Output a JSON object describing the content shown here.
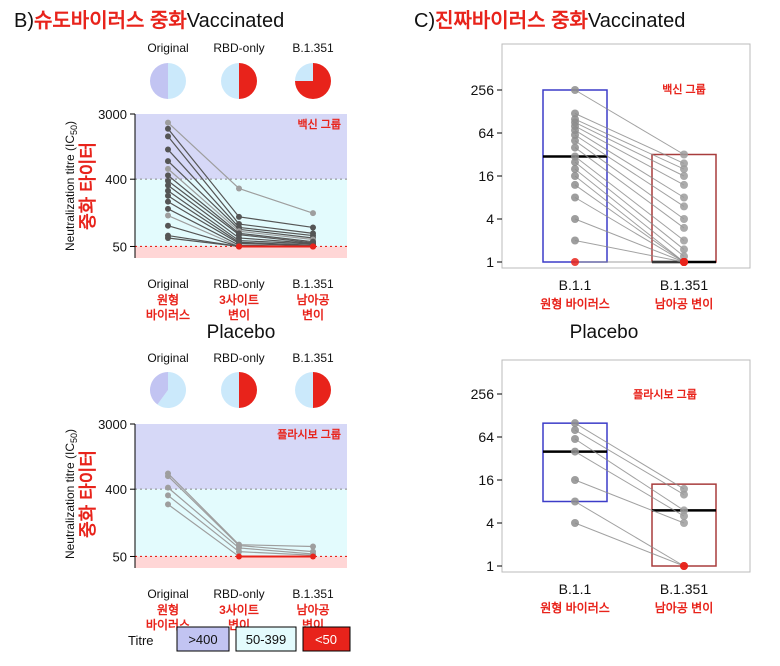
{
  "colors": {
    "band_high": "#d6d8f7",
    "band_mid": "#e3fbfd",
    "band_low": "#ffd6d6",
    "red": "#e8231b",
    "pie_light_blue": "#cbe9fb",
    "pie_lavender": "#c2c4f2",
    "line_dark": "#555555",
    "line_light": "#9e9e9e",
    "box_blue": "#3c3cc8",
    "box_red": "#a83c3c"
  },
  "panel_b": {
    "label": "B)",
    "title_korean": "슈도바이러스 중화",
    "title_english": "Vaccinated",
    "y_label": "Neutralization titre (IC",
    "y_label_sub": "50",
    "y_label_close": ")",
    "y_label_korean": "중화 타이터",
    "legend": {
      "label": "Titre",
      "items": [
        {
          "text": ">400",
          "color": "#c2c4f2"
        },
        {
          "text": "50-399",
          "color": "#e3fbfd"
        },
        {
          "text": "<50",
          "color": "#e8231b"
        }
      ]
    }
  },
  "panel_c": {
    "label": "C)",
    "title_korean": "진짜바이러스 중화",
    "title_english": "Vaccinated"
  },
  "placebo_title": "Placebo",
  "chart_data": [
    {
      "id": "B-vaccinated",
      "type": "line",
      "scale": "log",
      "ylim": [
        35,
        3000
      ],
      "yticks": [
        50,
        400,
        3000
      ],
      "bands": [
        [
          400,
          3000,
          "band_high"
        ],
        [
          50,
          400,
          "band_mid"
        ],
        [
          35,
          50,
          "band_low"
        ]
      ],
      "categories": [
        "Original",
        "RBD-only",
        "B.1.351"
      ],
      "categories_korean": [
        [
          "원형",
          "바이러스"
        ],
        [
          "3사이트",
          "변이"
        ],
        [
          "남아공",
          "변이"
        ]
      ],
      "group_label": "백신 그룹",
      "pies": [
        {
          "category": "Original",
          "red": 0,
          "light_blue": 50,
          "lavender": 50
        },
        {
          "category": "RBD-only",
          "red": 50,
          "light_blue": 50,
          "lavender": 0
        },
        {
          "category": "B.1.351",
          "red": 75,
          "light_blue": 25,
          "lavender": 0
        }
      ],
      "series": [
        {
          "values": [
            2300,
            300,
            140
          ],
          "tone": "light"
        },
        {
          "values": [
            1900,
            125,
            90
          ],
          "tone": "dark"
        },
        {
          "values": [
            1500,
            100,
            75
          ],
          "tone": "dark"
        },
        {
          "values": [
            1000,
            90,
            70
          ],
          "tone": "dark"
        },
        {
          "values": [
            700,
            85,
            65
          ],
          "tone": "dark"
        },
        {
          "values": [
            550,
            80,
            62
          ],
          "tone": "light"
        },
        {
          "values": [
            450,
            75,
            58
          ],
          "tone": "dark"
        },
        {
          "values": [
            380,
            72,
            56
          ],
          "tone": "dark"
        },
        {
          "values": [
            330,
            65,
            55
          ],
          "tone": "dark"
        },
        {
          "values": [
            280,
            60,
            54
          ],
          "tone": "dark"
        },
        {
          "values": [
            240,
            57,
            52
          ],
          "tone": "dark"
        },
        {
          "values": [
            200,
            55,
            51
          ],
          "tone": "dark"
        },
        {
          "values": [
            160,
            52,
            50
          ],
          "tone": "dark"
        },
        {
          "values": [
            130,
            50,
            50
          ],
          "tone": "light"
        },
        {
          "values": [
            95,
            50,
            50
          ],
          "tone": "dark"
        },
        {
          "values": [
            70,
            50,
            50
          ],
          "tone": "dark"
        },
        {
          "values": [
            65,
            50,
            50
          ],
          "tone": "dark"
        }
      ]
    },
    {
      "id": "B-placebo",
      "type": "line",
      "scale": "log",
      "ylim": [
        35,
        3000
      ],
      "yticks": [
        50,
        400,
        3000
      ],
      "bands": [
        [
          400,
          3000,
          "band_high"
        ],
        [
          50,
          400,
          "band_mid"
        ],
        [
          35,
          50,
          "band_low"
        ]
      ],
      "categories": [
        "Original",
        "RBD-only",
        "B.1.351"
      ],
      "categories_korean": [
        [
          "원형",
          "바이러스"
        ],
        [
          "3사이트",
          "변이"
        ],
        [
          "남아공",
          "변이"
        ]
      ],
      "group_label": "플라시보 그룹",
      "pies": [
        {
          "category": "Original",
          "red": 0,
          "light_blue": 60,
          "lavender": 40
        },
        {
          "category": "RBD-only",
          "red": 50,
          "light_blue": 50,
          "lavender": 0
        },
        {
          "category": "B.1.351",
          "red": 50,
          "light_blue": 50,
          "lavender": 0
        }
      ],
      "series": [
        {
          "values": [
            650,
            72,
            68
          ],
          "tone": "light"
        },
        {
          "values": [
            600,
            70,
            58
          ],
          "tone": "light"
        },
        {
          "values": [
            420,
            65,
            54
          ],
          "tone": "light"
        },
        {
          "values": [
            330,
            58,
            52
          ],
          "tone": "light"
        },
        {
          "values": [
            250,
            50,
            50
          ],
          "tone": "light"
        }
      ]
    },
    {
      "id": "C-vaccinated",
      "type": "box",
      "scale": "log2",
      "ylim": [
        1,
        256
      ],
      "yticks": [
        1,
        4,
        16,
        64,
        256
      ],
      "categories": [
        "B.1.1",
        "B.1.351"
      ],
      "categories_korean": [
        "원형 바이러스",
        "남아공 변이"
      ],
      "group_label": "백신 그룹",
      "boxes": [
        {
          "category": "B.1.1",
          "low": 1,
          "high": 256,
          "median": 30,
          "color": "box_blue"
        },
        {
          "category": "B.1.351",
          "low": 1,
          "high": 32,
          "median": 1,
          "color": "box_red"
        }
      ],
      "pairs": [
        [
          256,
          32
        ],
        [
          120,
          24
        ],
        [
          100,
          20
        ],
        [
          90,
          16
        ],
        [
          80,
          12
        ],
        [
          70,
          8
        ],
        [
          60,
          6
        ],
        [
          50,
          4
        ],
        [
          40,
          3
        ],
        [
          30,
          2
        ],
        [
          25,
          1.5
        ],
        [
          20,
          1.2
        ],
        [
          16,
          1
        ],
        [
          12,
          1
        ],
        [
          8,
          1
        ],
        [
          4,
          1
        ],
        [
          2,
          1
        ],
        [
          1,
          1
        ]
      ]
    },
    {
      "id": "C-placebo",
      "type": "box",
      "scale": "log2",
      "ylim": [
        1,
        256
      ],
      "yticks": [
        1,
        4,
        16,
        64,
        256
      ],
      "categories": [
        "B.1.1",
        "B.1.351"
      ],
      "categories_korean": [
        "원형 바이러스",
        "남아공 변이"
      ],
      "group_label": "플라시보 그룹",
      "boxes": [
        {
          "category": "B.1.1",
          "low": 8,
          "high": 100,
          "median": 40,
          "color": "box_blue"
        },
        {
          "category": "B.1.351",
          "low": 1,
          "high": 14,
          "median": 6,
          "color": "box_red"
        }
      ],
      "pairs": [
        [
          100,
          12
        ],
        [
          80,
          10
        ],
        [
          60,
          6
        ],
        [
          40,
          5
        ],
        [
          16,
          4
        ],
        [
          8,
          1
        ],
        [
          4,
          1
        ]
      ]
    }
  ]
}
